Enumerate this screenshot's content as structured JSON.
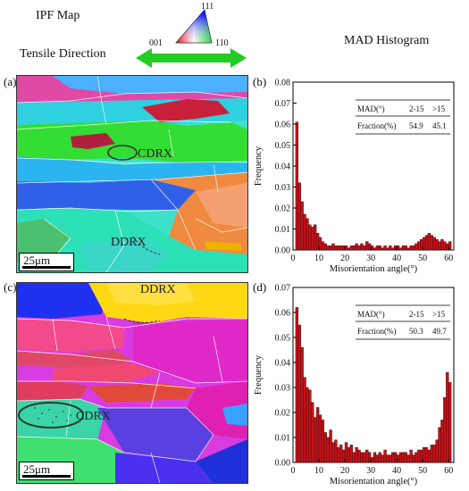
{
  "header": {
    "ipf_title": "IPF Map",
    "tensile_label": "Tensile Direction",
    "mad_title": "MAD  Histogram",
    "triangle_labels": {
      "top": "111",
      "left": "001",
      "right": "110"
    }
  },
  "panels": [
    {
      "letter": "(a)",
      "scale": "25μm",
      "labels": [
        "CDRX",
        "DDRX"
      ]
    },
    {
      "letter": "(b)"
    },
    {
      "letter": "(c)",
      "scale": "25μm",
      "labels": [
        "DDRX",
        "CDRX"
      ]
    },
    {
      "letter": "(d)"
    }
  ],
  "chart_data": [
    {
      "type": "bar",
      "panel": "(b)",
      "xlabel": "Misorientation angle(°)",
      "ylabel": "Frequency",
      "xlim": [
        0,
        62
      ],
      "ylim": [
        0,
        0.08
      ],
      "xticks": [
        0,
        10,
        20,
        30,
        40,
        50,
        60
      ],
      "yticks": [
        "0.00",
        "0.01",
        "0.02",
        "0.03",
        "0.04",
        "0.05",
        "0.06",
        "0.07",
        "0.08"
      ],
      "bar_color": "#c0141a",
      "x": [
        2,
        3,
        4,
        5,
        6,
        7,
        8,
        9,
        10,
        11,
        12,
        13,
        14,
        15,
        16,
        17,
        18,
        19,
        20,
        21,
        22,
        23,
        24,
        25,
        26,
        27,
        28,
        29,
        30,
        31,
        32,
        33,
        34,
        35,
        36,
        37,
        38,
        39,
        40,
        41,
        42,
        43,
        44,
        45,
        46,
        47,
        48,
        49,
        50,
        51,
        52,
        53,
        54,
        55,
        56,
        57,
        58,
        59,
        60,
        61
      ],
      "values": [
        0.061,
        0.032,
        0.023,
        0.017,
        0.015,
        0.012,
        0.011,
        0.012,
        0.008,
        0.006,
        0.004,
        0.003,
        0.002,
        0.002,
        0.003,
        0.002,
        0.002,
        0.002,
        0.002,
        0.002,
        0.001,
        0.002,
        0.002,
        0.003,
        0.002,
        0.003,
        0.002,
        0.004,
        0.003,
        0.002,
        0.001,
        0.002,
        0.002,
        0.001,
        0.002,
        0.001,
        0.002,
        0.001,
        0.002,
        0.002,
        0.001,
        0.002,
        0.002,
        0.001,
        0.002,
        0.002,
        0.003,
        0.004,
        0.005,
        0.006,
        0.007,
        0.008,
        0.007,
        0.006,
        0.005,
        0.004,
        0.005,
        0.004,
        0.003,
        0.004
      ],
      "table": {
        "headers": [
          "MAD(°)",
          "2-15",
          ">15"
        ],
        "row": [
          "Fraction(%)",
          "54.9",
          "45.1"
        ]
      }
    },
    {
      "type": "bar",
      "panel": "(d)",
      "xlabel": "Misorientation angle(°)",
      "ylabel": "Frequency",
      "xlim": [
        0,
        62
      ],
      "ylim": [
        0,
        0.07
      ],
      "xticks": [
        0,
        10,
        20,
        30,
        40,
        50,
        60
      ],
      "yticks": [
        "0.00",
        "0.01",
        "0.02",
        "0.03",
        "0.04",
        "0.05",
        "0.06",
        "0.07"
      ],
      "bar_color": "#c0141a",
      "x": [
        2,
        3,
        4,
        5,
        6,
        7,
        8,
        9,
        10,
        11,
        12,
        13,
        14,
        15,
        16,
        17,
        18,
        19,
        20,
        21,
        22,
        23,
        24,
        25,
        26,
        27,
        28,
        29,
        30,
        31,
        32,
        33,
        34,
        35,
        36,
        37,
        38,
        39,
        40,
        41,
        42,
        43,
        44,
        45,
        46,
        47,
        48,
        49,
        50,
        51,
        52,
        53,
        54,
        55,
        56,
        57,
        58,
        59,
        60,
        61
      ],
      "values": [
        0.062,
        0.055,
        0.046,
        0.034,
        0.03,
        0.029,
        0.024,
        0.018,
        0.022,
        0.019,
        0.017,
        0.012,
        0.01,
        0.013,
        0.008,
        0.009,
        0.006,
        0.007,
        0.005,
        0.008,
        0.006,
        0.007,
        0.004,
        0.006,
        0.005,
        0.004,
        0.004,
        0.005,
        0.004,
        0.002,
        0.004,
        0.003,
        0.004,
        0.003,
        0.005,
        0.003,
        0.003,
        0.004,
        0.004,
        0.003,
        0.004,
        0.004,
        0.004,
        0.003,
        0.005,
        0.003,
        0.004,
        0.005,
        0.005,
        0.006,
        0.006,
        0.005,
        0.007,
        0.007,
        0.009,
        0.014,
        0.017,
        0.026,
        0.036,
        0.032
      ],
      "table": {
        "headers": [
          "MAD(°)",
          "2-15",
          ">15"
        ],
        "row": [
          "Fraction(%)",
          "50.3",
          "49.7"
        ]
      }
    }
  ]
}
